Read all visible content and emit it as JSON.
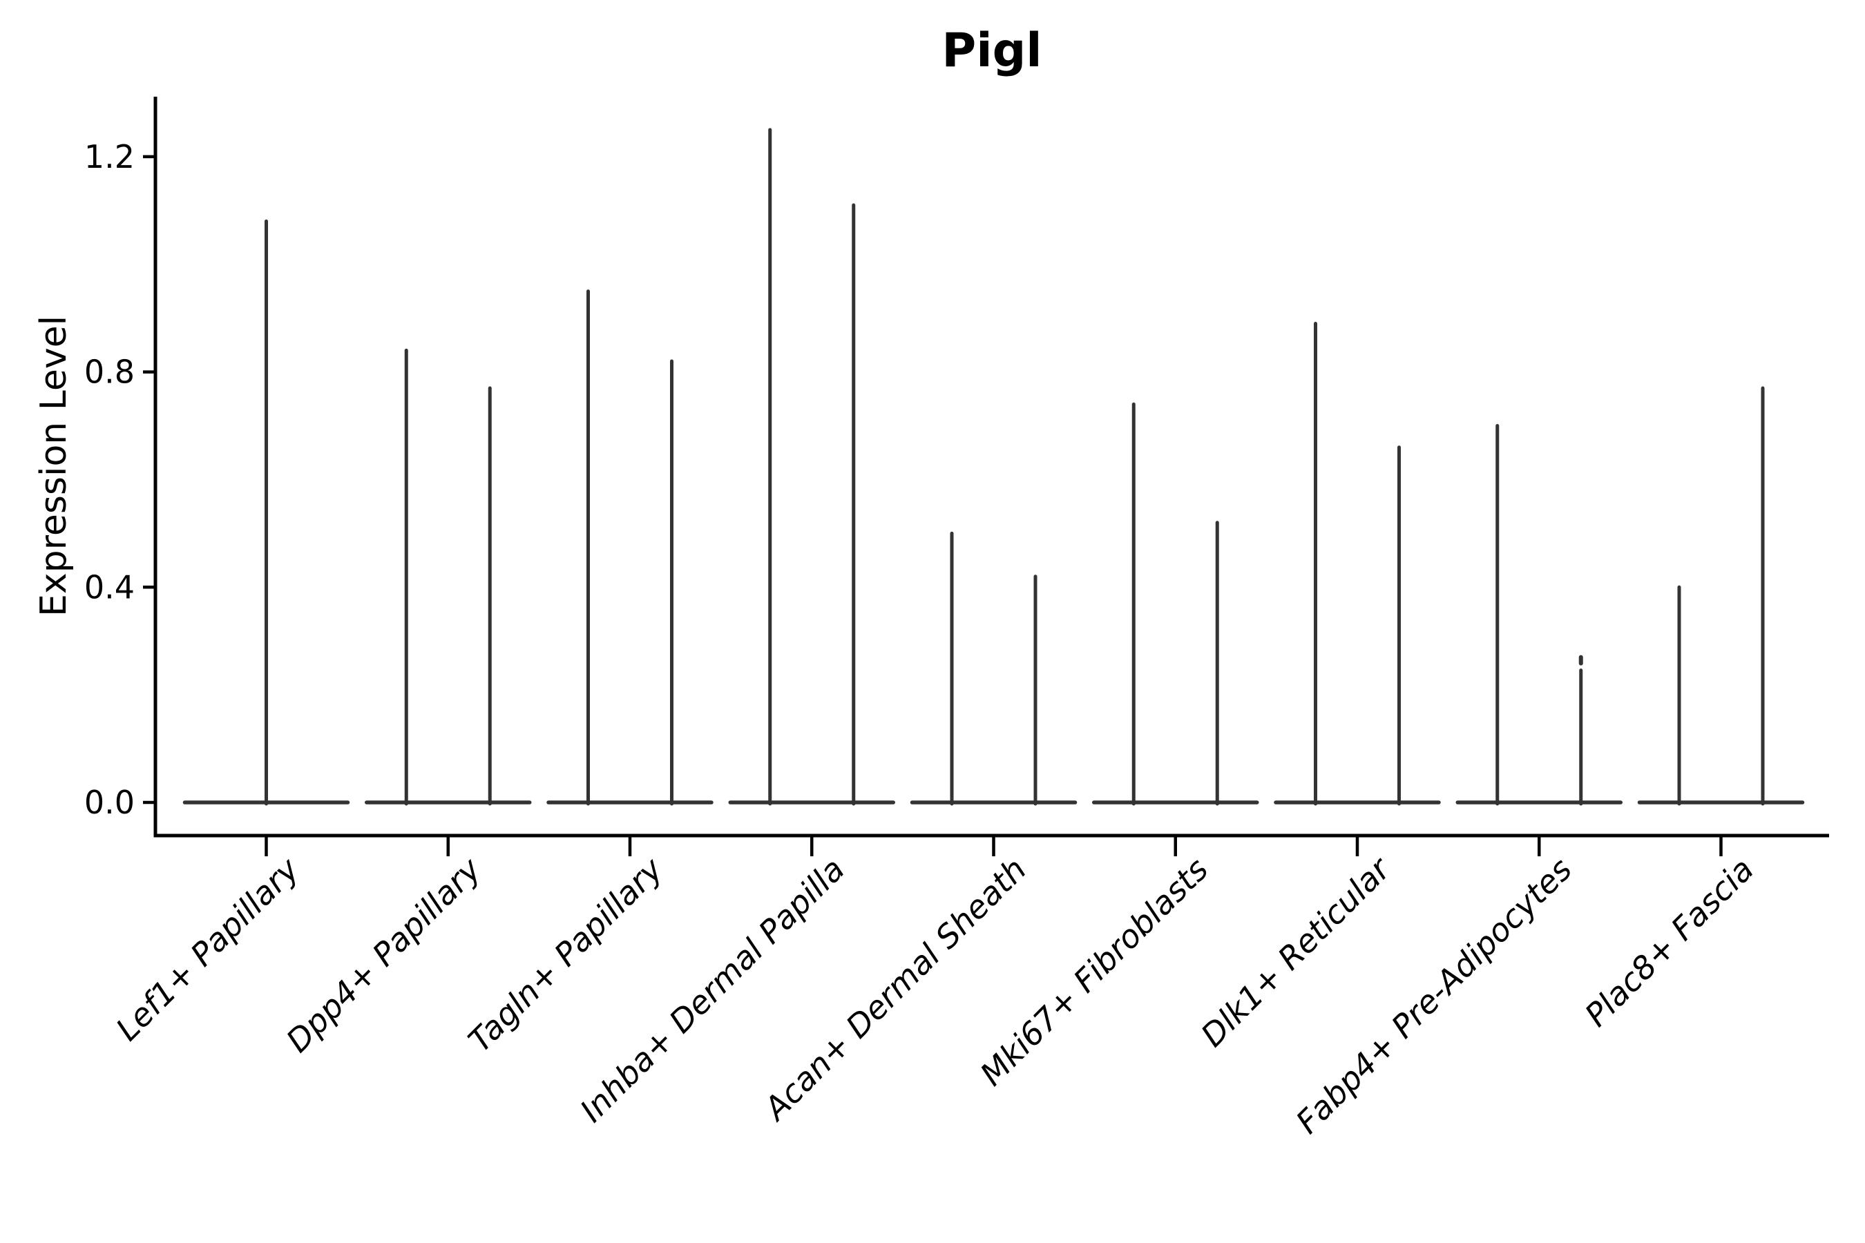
{
  "chart_data": {
    "type": "violin",
    "title": "Pigl",
    "ylabel": "Expression Level",
    "xlabel": "",
    "ytick_labels": [
      "0.0",
      "0.4",
      "0.8",
      "1.2"
    ],
    "ytick_values": [
      0.0,
      0.4,
      0.8,
      1.2
    ],
    "ylim": [
      -0.06,
      1.31
    ],
    "grid": false,
    "legend": "none",
    "style_note": "scanpy-style violins: wide flat base at 0 with thin vertical spike(s) up to max expression",
    "violin_color": "#333333",
    "axis_color": "#000000",
    "categories": [
      "Lef1+ Papillary",
      "Dpp4+ Papillary",
      "Tagln+ Papillary",
      "Inhba+ Dermal Papilla",
      "Acan+ Dermal Sheath",
      "Mki67+ Fibroblasts",
      "Dlk1+ Reticular",
      "Fabp4+ Pre-Adipocytes",
      "Plac8+ Fascia"
    ],
    "series": [
      {
        "category": "Lef1+ Papillary",
        "violins": [
          {
            "position": "center",
            "max": 1.08,
            "notch": false
          }
        ]
      },
      {
        "category": "Dpp4+ Papillary",
        "violins": [
          {
            "position": "left",
            "max": 0.84,
            "notch": false
          },
          {
            "position": "right",
            "max": 0.77,
            "notch": false
          }
        ]
      },
      {
        "category": "Tagln+ Papillary",
        "violins": [
          {
            "position": "left",
            "max": 0.95,
            "notch": false
          },
          {
            "position": "right",
            "max": 0.82,
            "notch": false
          }
        ]
      },
      {
        "category": "Inhba+ Dermal Papilla",
        "violins": [
          {
            "position": "left",
            "max": 1.25,
            "notch": false
          },
          {
            "position": "right",
            "max": 1.11,
            "notch": false
          }
        ]
      },
      {
        "category": "Acan+ Dermal Sheath",
        "violins": [
          {
            "position": "left",
            "max": 0.5,
            "notch": false
          },
          {
            "position": "right",
            "max": 0.42,
            "notch": false
          }
        ]
      },
      {
        "category": "Mki67+ Fibroblasts",
        "violins": [
          {
            "position": "left",
            "max": 0.74,
            "notch": false
          },
          {
            "position": "right",
            "max": 0.52,
            "notch": false
          }
        ]
      },
      {
        "category": "Dlk1+ Reticular",
        "violins": [
          {
            "position": "left",
            "max": 0.89,
            "notch": false
          },
          {
            "position": "right",
            "max": 0.66,
            "notch": false
          }
        ]
      },
      {
        "category": "Fabp4+ Pre-Adipocytes",
        "violins": [
          {
            "position": "left",
            "max": 0.7,
            "notch": false
          },
          {
            "position": "right",
            "max": 0.27,
            "notch": true
          }
        ]
      },
      {
        "category": "Plac8+ Fascia",
        "violins": [
          {
            "position": "left",
            "max": 0.4,
            "notch": false
          },
          {
            "position": "right",
            "max": 0.77,
            "notch": false
          }
        ]
      }
    ]
  }
}
